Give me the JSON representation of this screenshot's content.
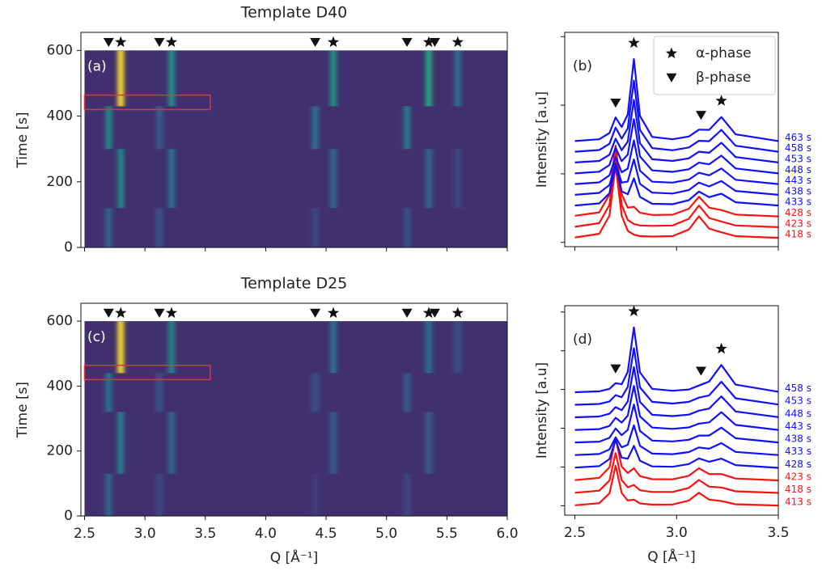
{
  "chart_data": [
    {
      "type": "heatmap",
      "title": "Template D40",
      "panel": "(a)",
      "ylabel": "Time [s]",
      "xlim": [
        2.47,
        6.0
      ],
      "xticks": [
        2.5,
        {
          "value": 3,
          "label": "3.0"
        },
        3.5,
        {
          "value": 4,
          "label": "4.0"
        },
        4.5,
        {
          "value": 5,
          "label": "5.0"
        },
        5.5,
        {
          "value": 6,
          "label": "6.0"
        }
      ],
      "xticklabels": false,
      "ylim": [
        0,
        655
      ],
      "yticks": [
        0,
        200,
        400,
        600
      ],
      "image_xlim": [
        2.5,
        6.0
      ],
      "image_ylim": [
        0,
        600
      ],
      "colormap": "viridis",
      "background": "#41306e",
      "beta_peaks": [
        2.7,
        3.12,
        4.41,
        5.17,
        5.4
      ],
      "alpha_peaks": [
        2.8,
        3.22,
        4.56,
        5.35,
        5.59
      ],
      "highlight": {
        "x": [
          2.5,
          3.54
        ],
        "y": [
          420,
          464
        ],
        "color": "#e8303a"
      },
      "streaks": [
        {
          "x": 2.7,
          "t": [
            0,
            120
          ],
          "intensity": 0.4
        },
        {
          "x": 2.7,
          "t": [
            300,
            430
          ],
          "intensity": 0.55
        },
        {
          "x": 2.8,
          "t": [
            120,
            300
          ],
          "intensity": 0.55
        },
        {
          "x": 2.8,
          "t": [
            430,
            600
          ],
          "intensity": 1.0
        },
        {
          "x": 3.12,
          "t": [
            0,
            120
          ],
          "intensity": 0.3
        },
        {
          "x": 3.12,
          "t": [
            300,
            430
          ],
          "intensity": 0.35
        },
        {
          "x": 3.22,
          "t": [
            120,
            300
          ],
          "intensity": 0.45
        },
        {
          "x": 3.22,
          "t": [
            430,
            600
          ],
          "intensity": 0.6
        },
        {
          "x": 4.41,
          "t": [
            0,
            120
          ],
          "intensity": 0.25
        },
        {
          "x": 4.41,
          "t": [
            300,
            430
          ],
          "intensity": 0.45
        },
        {
          "x": 4.56,
          "t": [
            120,
            300
          ],
          "intensity": 0.4
        },
        {
          "x": 4.56,
          "t": [
            430,
            600
          ],
          "intensity": 0.6
        },
        {
          "x": 5.17,
          "t": [
            0,
            120
          ],
          "intensity": 0.3
        },
        {
          "x": 5.17,
          "t": [
            300,
            430
          ],
          "intensity": 0.5
        },
        {
          "x": 5.35,
          "t": [
            120,
            300
          ],
          "intensity": 0.4
        },
        {
          "x": 5.35,
          "t": [
            430,
            600
          ],
          "intensity": 0.7
        },
        {
          "x": 5.59,
          "t": [
            120,
            300
          ],
          "intensity": 0.25
        },
        {
          "x": 5.59,
          "t": [
            430,
            600
          ],
          "intensity": 0.45
        }
      ]
    },
    {
      "type": "line",
      "panel": "(b)",
      "ylabel": "Intensity [a.u]",
      "xlim": [
        2.45,
        3.5
      ],
      "xticks": [
        2.5,
        {
          "value": 3,
          "label": "3.0"
        },
        3.5
      ],
      "xticklabels": false,
      "ylim": [
        0,
        10
      ],
      "yticks": [
        0.2,
        3.4,
        6.6,
        9.8
      ],
      "yticklabels": false,
      "beta_peaks": [
        2.7,
        3.12
      ],
      "alpha_peaks": [
        2.79,
        3.22
      ],
      "legend": [
        {
          "name": "α-phase",
          "symbol": "star"
        },
        {
          "name": "β-phase",
          "symbol": "triangle"
        }
      ],
      "legend_position": "upper right",
      "x": [
        2.5,
        2.62,
        2.67,
        2.7,
        2.73,
        2.76,
        2.79,
        2.82,
        2.88,
        2.98,
        3.06,
        3.11,
        3.16,
        3.22,
        3.29,
        3.5
      ],
      "series": [
        {
          "name": "418 s",
          "color": "#ff1010",
          "values": [
            0.43,
            0.6,
            1.45,
            3.8,
            1.45,
            0.74,
            0.56,
            0.49,
            0.47,
            0.49,
            0.8,
            1.42,
            0.84,
            0.67,
            0.49,
            0.41
          ]
        },
        {
          "name": "423 s",
          "color": "#ff1010",
          "values": [
            0.93,
            1.1,
            1.95,
            4.3,
            1.95,
            1.24,
            1.06,
            0.99,
            0.97,
            0.99,
            1.3,
            1.92,
            1.34,
            1.17,
            0.99,
            0.91
          ]
        },
        {
          "name": "428 s",
          "color": "#ff1010",
          "values": [
            1.44,
            1.6,
            2.43,
            4.71,
            2.45,
            1.82,
            1.86,
            1.58,
            1.48,
            1.49,
            1.77,
            2.33,
            1.82,
            1.71,
            1.5,
            1.41
          ]
        },
        {
          "name": "433 s",
          "color": "#1010ff",
          "values": [
            1.92,
            2.02,
            2.49,
            3.76,
            2.58,
            2.45,
            3.19,
            2.32,
            2.0,
            1.98,
            2.17,
            2.57,
            2.31,
            2.47,
            2.07,
            1.92
          ]
        },
        {
          "name": "438 s",
          "color": "#1010ff",
          "values": [
            2.42,
            2.51,
            2.88,
            3.88,
            2.99,
            3.04,
            4.07,
            2.93,
            2.52,
            2.48,
            2.64,
            2.99,
            2.81,
            3.06,
            2.6,
            2.42
          ]
        },
        {
          "name": "443 s",
          "color": "#1010ff",
          "values": [
            2.92,
            3.0,
            3.33,
            4.19,
            3.47,
            3.64,
            4.96,
            3.55,
            3.03,
            2.99,
            3.13,
            3.45,
            3.33,
            3.65,
            3.12,
            2.92
          ]
        },
        {
          "name": "448 s",
          "color": "#1010ff",
          "values": [
            3.42,
            3.5,
            3.81,
            4.62,
            3.99,
            4.29,
            5.95,
            4.21,
            3.56,
            3.49,
            3.61,
            3.92,
            3.84,
            4.25,
            3.65,
            3.42
          ]
        },
        {
          "name": "453 s",
          "color": "#1010ff",
          "values": [
            3.93,
            4.0,
            4.29,
            5.04,
            4.5,
            4.9,
            6.85,
            4.83,
            4.08,
            4.0,
            4.12,
            4.43,
            4.38,
            4.85,
            4.18,
            3.93
          ]
        },
        {
          "name": "458 s",
          "color": "#1010ff",
          "values": [
            4.43,
            4.51,
            4.8,
            5.56,
            5.04,
            5.52,
            7.75,
            5.45,
            4.6,
            4.5,
            4.63,
            4.94,
            4.92,
            5.45,
            4.71,
            4.43
          ]
        },
        {
          "name": "463 s",
          "color": "#1010ff",
          "values": [
            4.93,
            5.01,
            5.3,
            6.03,
            5.58,
            6.17,
            8.75,
            6.1,
            5.12,
            5.01,
            5.14,
            5.46,
            5.45,
            6.05,
            5.24,
            4.93
          ]
        }
      ]
    },
    {
      "type": "heatmap",
      "title": "Template D25",
      "panel": "(c)",
      "ylabel": "Time [s]",
      "xlabel": "Q [Å⁻¹]",
      "xlim": [
        2.47,
        6.0
      ],
      "xticks": [
        2.5,
        {
          "value": 3,
          "label": "3.0"
        },
        3.5,
        {
          "value": 4,
          "label": "4.0"
        },
        4.5,
        {
          "value": 5,
          "label": "5.0"
        },
        5.5,
        {
          "value": 6,
          "label": "6.0"
        }
      ],
      "ylim": [
        0,
        655
      ],
      "yticks": [
        0,
        200,
        400,
        600
      ],
      "image_xlim": [
        2.5,
        6.0
      ],
      "image_ylim": [
        0,
        600
      ],
      "colormap": "viridis",
      "background": "#41306e",
      "beta_peaks": [
        2.7,
        3.12,
        4.41,
        5.17,
        5.4
      ],
      "alpha_peaks": [
        2.8,
        3.22,
        4.56,
        5.35,
        5.59
      ],
      "highlight": {
        "x": [
          2.5,
          3.54
        ],
        "y": [
          420,
          464
        ],
        "color": "#e8303a"
      },
      "streaks": [
        {
          "x": 2.7,
          "t": [
            0,
            130
          ],
          "intensity": 0.4
        },
        {
          "x": 2.7,
          "t": [
            320,
            440
          ],
          "intensity": 0.45
        },
        {
          "x": 2.8,
          "t": [
            130,
            320
          ],
          "intensity": 0.5
        },
        {
          "x": 2.8,
          "t": [
            440,
            600
          ],
          "intensity": 1.0
        },
        {
          "x": 3.12,
          "t": [
            0,
            130
          ],
          "intensity": 0.25
        },
        {
          "x": 3.12,
          "t": [
            320,
            440
          ],
          "intensity": 0.3
        },
        {
          "x": 3.22,
          "t": [
            130,
            320
          ],
          "intensity": 0.4
        },
        {
          "x": 3.22,
          "t": [
            440,
            600
          ],
          "intensity": 0.55
        },
        {
          "x": 4.41,
          "t": [
            0,
            130
          ],
          "intensity": 0.2
        },
        {
          "x": 4.41,
          "t": [
            320,
            440
          ],
          "intensity": 0.3
        },
        {
          "x": 4.56,
          "t": [
            130,
            320
          ],
          "intensity": 0.35
        },
        {
          "x": 4.56,
          "t": [
            440,
            600
          ],
          "intensity": 0.45
        },
        {
          "x": 5.17,
          "t": [
            0,
            130
          ],
          "intensity": 0.25
        },
        {
          "x": 5.17,
          "t": [
            320,
            440
          ],
          "intensity": 0.35
        },
        {
          "x": 5.35,
          "t": [
            130,
            320
          ],
          "intensity": 0.35
        },
        {
          "x": 5.35,
          "t": [
            440,
            600
          ],
          "intensity": 0.45
        },
        {
          "x": 5.59,
          "t": [
            440,
            600
          ],
          "intensity": 0.3
        }
      ]
    },
    {
      "type": "line",
      "panel": "(d)",
      "ylabel": "Intensity [a.u]",
      "xlabel": "Q [Å⁻¹]",
      "xlim": [
        2.45,
        3.5
      ],
      "xticks": [
        2.5,
        {
          "value": 3,
          "label": "3.0"
        },
        3.5
      ],
      "ylim": [
        0,
        10
      ],
      "yticks": [
        0.45,
        2.3,
        4.15,
        6.0,
        7.85,
        9.7
      ],
      "yticklabels": false,
      "beta_peaks": [
        2.7,
        3.12
      ],
      "alpha_peaks": [
        2.79,
        3.22
      ],
      "x": [
        2.5,
        2.62,
        2.67,
        2.7,
        2.73,
        2.76,
        2.79,
        2.82,
        2.88,
        2.98,
        3.06,
        3.11,
        3.16,
        3.22,
        3.29,
        3.5
      ],
      "series": [
        {
          "name": "413 s",
          "color": "#ff1010",
          "values": [
            0.47,
            0.57,
            1.04,
            2.36,
            1.06,
            0.7,
            0.74,
            0.56,
            0.5,
            0.51,
            0.7,
            1.07,
            0.74,
            0.67,
            0.52,
            0.46
          ]
        },
        {
          "name": "418 s",
          "color": "#ff1010",
          "values": [
            1.07,
            1.17,
            1.65,
            2.96,
            1.67,
            1.33,
            1.44,
            1.19,
            1.11,
            1.11,
            1.3,
            1.68,
            1.36,
            1.32,
            1.14,
            1.06
          ]
        },
        {
          "name": "423 s",
          "color": "#ff1010",
          "values": [
            1.67,
            1.78,
            2.28,
            3.67,
            2.32,
            2.01,
            2.24,
            1.86,
            1.72,
            1.71,
            1.88,
            2.24,
            1.96,
            1.96,
            1.75,
            1.66
          ]
        },
        {
          "name": "428 s",
          "color": "#1010ff",
          "values": [
            2.27,
            2.34,
            2.68,
            3.6,
            2.75,
            2.69,
            3.31,
            2.6,
            2.33,
            2.31,
            2.44,
            2.71,
            2.55,
            2.7,
            2.39,
            2.26
          ]
        },
        {
          "name": "433 s",
          "color": "#1010ff",
          "values": [
            2.87,
            2.92,
            3.14,
            3.72,
            3.24,
            3.36,
            4.29,
            3.31,
            2.94,
            2.91,
            3.01,
            3.23,
            3.17,
            3.44,
            3.02,
            2.87
          ]
        },
        {
          "name": "438 s",
          "color": "#1010ff",
          "values": [
            3.47,
            3.51,
            3.69,
            4.14,
            3.82,
            4.07,
            5.28,
            4.02,
            3.56,
            3.52,
            3.6,
            3.8,
            3.8,
            4.18,
            3.67,
            3.47
          ]
        },
        {
          "name": "443 s",
          "color": "#1010ff",
          "values": [
            4.07,
            4.11,
            4.26,
            4.65,
            4.42,
            4.75,
            6.17,
            4.72,
            4.18,
            4.12,
            4.19,
            4.37,
            4.43,
            4.92,
            4.31,
            4.07
          ]
        },
        {
          "name": "448 s",
          "color": "#1010ff",
          "values": [
            4.67,
            4.71,
            4.84,
            5.16,
            5.01,
            5.43,
            7.07,
            5.41,
            4.79,
            4.73,
            4.8,
            4.99,
            5.09,
            5.67,
            4.95,
            4.68
          ]
        },
        {
          "name": "453 s",
          "color": "#1010ff",
          "values": [
            5.27,
            5.31,
            5.43,
            5.73,
            5.63,
            6.12,
            7.97,
            6.1,
            5.41,
            5.33,
            5.41,
            5.61,
            5.72,
            6.37,
            5.58,
            5.28
          ]
        },
        {
          "name": "458 s",
          "color": "#1010ff",
          "values": [
            5.87,
            5.91,
            6.03,
            6.3,
            6.25,
            6.84,
            8.96,
            6.82,
            6.03,
            5.94,
            6.0,
            6.19,
            6.38,
            7.17,
            6.23,
            5.89
          ]
        }
      ]
    }
  ]
}
